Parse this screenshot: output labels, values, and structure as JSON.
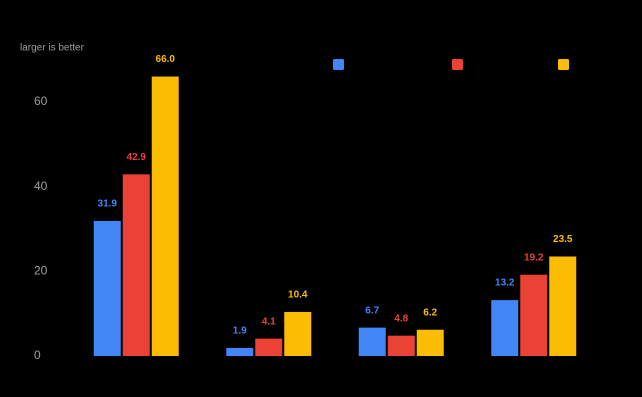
{
  "chart_data": {
    "type": "bar",
    "annotation": "larger is better",
    "categories": [
      null,
      null,
      null,
      null
    ],
    "series": [
      {
        "color": "#4285f4",
        "values": [
          31.9,
          1.9,
          6.7,
          13.2
        ],
        "value_labels": [
          "31.9",
          "1.9",
          "6.7",
          "13.2"
        ]
      },
      {
        "color": "#ea4335",
        "values": [
          42.9,
          4.1,
          4.8,
          19.2
        ],
        "value_labels": [
          "42.9",
          "4.1",
          "4.8",
          "19.2"
        ]
      },
      {
        "color": "#fbbc04",
        "values": [
          66,
          10.4,
          6.2,
          23.5
        ],
        "value_labels": [
          "66.0",
          "10.4",
          "6.2",
          "23.5"
        ]
      }
    ],
    "ylim": [
      0,
      70
    ],
    "yticks": [
      0,
      20,
      40,
      60
    ],
    "grid": false
  }
}
